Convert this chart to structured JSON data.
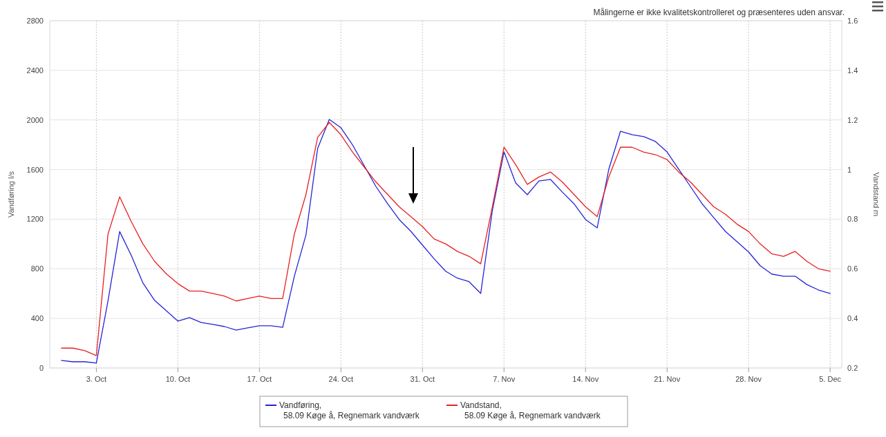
{
  "chart_data": {
    "type": "line",
    "annotations": [
      "Målingerne er ikke kvalitetskontrolleret og præsenteres uden ansvar."
    ],
    "ylabel": "Vandføring l/s",
    "y2label": "Vandstand m",
    "x": [
      "--09-30",
      "--10-01",
      "--10-02",
      "--10-03",
      "--10-04",
      "--10-05",
      "--10-06",
      "--10-07",
      "--10-08",
      "--10-09",
      "--10-10",
      "--10-11",
      "--10-12",
      "--10-13",
      "--10-14",
      "--10-15",
      "--10-16",
      "--10-17",
      "--10-18",
      "--10-19",
      "--10-20",
      "--10-21",
      "--10-22",
      "--10-23",
      "--10-24",
      "--10-25",
      "--10-26",
      "--10-27",
      "--10-28",
      "--10-29",
      "--10-30",
      "--10-31",
      "--11-01",
      "--11-02",
      "--11-03",
      "--11-04",
      "--11-05",
      "--11-06",
      "--11-07",
      "--11-08",
      "--11-09",
      "--11-10",
      "--11-11",
      "--11-12",
      "--11-13",
      "--11-14",
      "--11-15",
      "--11-16",
      "--11-17",
      "--11-18",
      "--11-19",
      "--11-20",
      "--11-21",
      "--11-22",
      "--11-23",
      "--11-24",
      "--11-25",
      "--11-26",
      "--11-27",
      "--11-28",
      "--11-29",
      "--11-30",
      "--12-01",
      "--12-02",
      "--12-03",
      "--12-04",
      "--12-05"
    ],
    "series": [
      {
        "name": "Vandføring,\n58.09 Køge å, Regnemark vandværk",
        "color": "#2424d8",
        "values": [
          61,
          50,
          50,
          40,
          540,
          1100,
          907,
          685,
          545,
          462,
          378,
          406,
          367,
          351,
          334,
          306,
          323,
          340,
          340,
          328,
          740,
          1074,
          1770,
          2004,
          1937,
          1798,
          1631,
          1464,
          1325,
          1197,
          1102,
          991,
          880,
          779,
          724,
          696,
          601,
          1269,
          1742,
          1492,
          1397,
          1508,
          1520,
          1419,
          1325,
          1197,
          1130,
          1603,
          1909,
          1881,
          1865,
          1826,
          1742,
          1603,
          1464,
          1325,
          1213,
          1102,
          1019,
          935,
          824,
          757,
          740,
          740,
          673,
          629,
          601
        ]
      },
      {
        "name": "Vandstand,\n58.09 Køge å, Regnemark vandværk",
        "color": "#e82020",
        "axis": "y2",
        "values": [
          0.28,
          0.28,
          0.27,
          0.25,
          0.74,
          0.89,
          0.79,
          0.7,
          0.63,
          0.58,
          0.54,
          0.51,
          0.51,
          0.5,
          0.49,
          0.47,
          0.48,
          0.49,
          0.48,
          0.48,
          0.74,
          0.9,
          1.13,
          1.19,
          1.14,
          1.07,
          1.01,
          0.95,
          0.9,
          0.85,
          0.81,
          0.77,
          0.72,
          0.7,
          0.67,
          0.65,
          0.62,
          0.85,
          1.09,
          1.02,
          0.94,
          0.97,
          0.99,
          0.95,
          0.9,
          0.85,
          0.81,
          0.97,
          1.09,
          1.09,
          1.07,
          1.06,
          1.04,
          0.99,
          0.95,
          0.9,
          0.85,
          0.82,
          0.78,
          0.75,
          0.7,
          0.66,
          0.65,
          0.67,
          0.63,
          0.6,
          0.59
        ]
      }
    ],
    "xlim": [
      "--09-29",
      "--12-06"
    ],
    "xticks": [
      {
        "value": "--10-03",
        "label": "3. Oct"
      },
      {
        "value": "--10-10",
        "label": "10. Oct"
      },
      {
        "value": "--10-17",
        "label": "17. Oct"
      },
      {
        "value": "--10-24",
        "label": "24. Oct"
      },
      {
        "value": "--10-31",
        "label": "31. Oct"
      },
      {
        "value": "--11-07",
        "label": "7. Nov"
      },
      {
        "value": "--11-14",
        "label": "14. Nov"
      },
      {
        "value": "--11-21",
        "label": "21. Nov"
      },
      {
        "value": "--11-28",
        "label": "28. Nov"
      },
      {
        "value": "--12-05",
        "label": "5. Dec"
      }
    ],
    "ylim": [
      0,
      2800
    ],
    "yticks": [
      0,
      400,
      800,
      1200,
      1600,
      2000,
      2400,
      2800
    ],
    "y2lim": [
      0.2,
      1.6
    ],
    "y2ticks": [
      0.2,
      0.4,
      0.6,
      0.8,
      1,
      1.2,
      1.4,
      1.6
    ],
    "grid": true,
    "legend": "bottom",
    "marker": "none",
    "line_style": "solid"
  }
}
